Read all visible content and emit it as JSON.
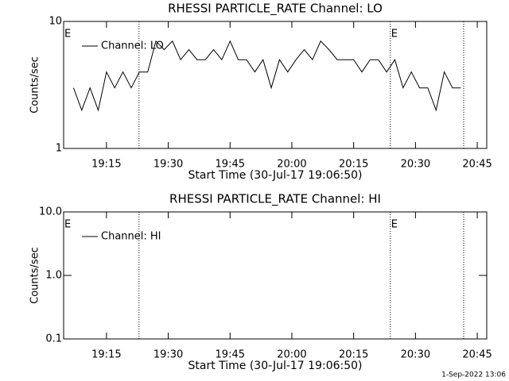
{
  "chart_data": [
    {
      "type": "line",
      "title": "RHESSI PARTICLE_RATE Channel: LO",
      "ylabel": "Counts/sec",
      "xlabel": "Start Time (30-Jul-17 19:06:50)",
      "log_y": true,
      "ylim": [
        1,
        10
      ],
      "yticks": [
        1,
        10
      ],
      "xlim": [
        "19:04:36",
        "20:47:18"
      ],
      "xticks": [
        "19:15",
        "19:30",
        "19:45",
        "20:00",
        "20:15",
        "20:30",
        "20:45"
      ],
      "x": [
        "19:07",
        "19:09",
        "19:11",
        "19:13",
        "19:15",
        "19:17",
        "19:19",
        "19:21",
        "19:23",
        "19:25",
        "19:27",
        "19:29",
        "19:31",
        "19:33",
        "19:35",
        "19:37",
        "19:39",
        "19:41",
        "19:43",
        "19:45",
        "19:47",
        "19:49",
        "19:51",
        "19:53",
        "19:55",
        "19:57",
        "19:59",
        "20:01",
        "20:03",
        "20:05",
        "20:07",
        "20:09",
        "20:11",
        "20:13",
        "20:15",
        "20:17",
        "20:19",
        "20:21",
        "20:23",
        "20:25",
        "20:27",
        "20:29",
        "20:31",
        "20:33",
        "20:35",
        "20:37",
        "20:39",
        "20:41"
      ],
      "series": [
        {
          "name": "Channel: LO",
          "color": "#000000",
          "values": [
            3,
            2,
            3,
            2,
            4,
            3,
            4,
            3,
            4,
            4,
            7,
            6,
            7,
            5,
            6,
            5,
            5,
            6,
            5,
            7,
            5,
            5,
            4,
            5,
            3,
            5,
            4,
            5,
            6,
            5,
            7,
            6,
            5,
            5,
            5,
            4,
            5,
            5,
            4,
            5,
            3,
            4,
            3,
            3,
            2,
            4,
            3,
            3
          ]
        }
      ],
      "event_lines": [
        "19:22:54",
        "20:23:54",
        "20:41:42"
      ],
      "event_labels": [
        {
          "x": "19:04:36",
          "text": "E"
        },
        {
          "x": "20:23:54",
          "text": "E"
        }
      ]
    },
    {
      "type": "line",
      "title": "RHESSI PARTICLE_RATE Channel: HI",
      "ylabel": "Counts/sec",
      "xlabel": "Start Time (30-Jul-17 19:06:50)",
      "log_y": true,
      "ylim": [
        0.1,
        10
      ],
      "yticks": [
        0.1,
        {
          "value": 1,
          "label": "1.0"
        },
        {
          "value": 10,
          "label": "10.0"
        }
      ],
      "xlim": [
        "19:04:36",
        "20:47:18"
      ],
      "xticks": [
        "19:15",
        "19:30",
        "19:45",
        "20:00",
        "20:15",
        "20:30",
        "20:45"
      ],
      "x": [],
      "series": [
        {
          "name": "Channel: HI",
          "color": "#000000",
          "values": []
        }
      ],
      "event_lines": [
        "19:22:54",
        "20:23:54",
        "20:41:42"
      ],
      "event_labels": [
        {
          "x": "19:04:36",
          "text": "E"
        },
        {
          "x": "20:23:54",
          "text": "E"
        }
      ]
    }
  ],
  "footer": "1-Sep-2022 13:06"
}
